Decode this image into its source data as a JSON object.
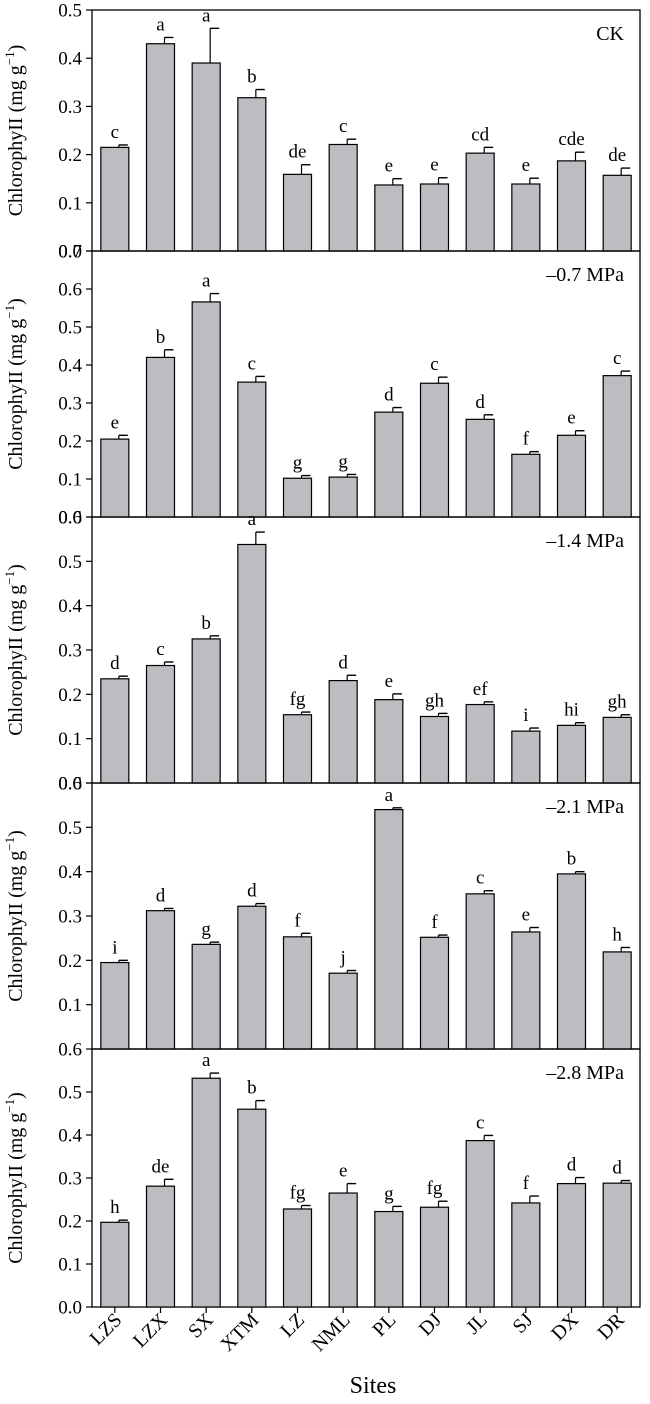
{
  "chart_data": {
    "type": "bar",
    "xlabel": "Sites",
    "categories": [
      "LZS",
      "LZX",
      "SX",
      "XTM",
      "LZ",
      "NML",
      "PL",
      "DJ",
      "JL",
      "SJ",
      "DX",
      "DR"
    ],
    "colors": {
      "bar": "#bfbcc1",
      "stroke": "#000000"
    },
    "panels": [
      {
        "label": "CK",
        "ylabel_main": "ChlorophyII (mg g",
        "ylabel_sup": "−1",
        "ylabel_end": ")",
        "ylim": [
          0,
          0.5
        ],
        "yticks": [
          "0.0",
          "0.1",
          "0.2",
          "0.3",
          "0.4",
          "0.5"
        ],
        "values": [
          0.215,
          0.43,
          0.39,
          0.318,
          0.159,
          0.221,
          0.137,
          0.139,
          0.203,
          0.139,
          0.187,
          0.157
        ],
        "errors": [
          0.005,
          0.013,
          0.072,
          0.017,
          0.02,
          0.011,
          0.013,
          0.013,
          0.012,
          0.012,
          0.018,
          0.015
        ],
        "letters": [
          "c",
          "a",
          "a",
          "b",
          "de",
          "c",
          "e",
          "e",
          "cd",
          "e",
          "cde",
          "de"
        ]
      },
      {
        "label": "–0.7 MPa",
        "ylabel_main": "ChlorophyII (mg g",
        "ylabel_sup": "−1",
        "ylabel_end": ")",
        "ylim": [
          0,
          0.7
        ],
        "yticks": [
          "0.0",
          "0.1",
          "0.2",
          "0.3",
          "0.4",
          "0.5",
          "0.6",
          "0.7"
        ],
        "values": [
          0.205,
          0.42,
          0.566,
          0.355,
          0.102,
          0.105,
          0.276,
          0.352,
          0.257,
          0.165,
          0.215,
          0.372
        ],
        "errors": [
          0.01,
          0.02,
          0.022,
          0.015,
          0.007,
          0.007,
          0.012,
          0.016,
          0.012,
          0.007,
          0.012,
          0.012
        ],
        "letters": [
          "e",
          "b",
          "a",
          "c",
          "g",
          "g",
          "d",
          "c",
          "d",
          "f",
          "e",
          "c"
        ]
      },
      {
        "label": "–1.4 MPa",
        "ylabel_main": "ChlorophyII (mg g",
        "ylabel_sup": "−1",
        "ylabel_end": ")",
        "ylim": [
          0,
          0.6
        ],
        "yticks": [
          "0.0",
          "0.1",
          "0.2",
          "0.3",
          "0.4",
          "0.5",
          "0.6"
        ],
        "values": [
          0.235,
          0.265,
          0.325,
          0.538,
          0.154,
          0.231,
          0.188,
          0.15,
          0.177,
          0.117,
          0.13,
          0.148
        ],
        "errors": [
          0.006,
          0.008,
          0.007,
          0.028,
          0.006,
          0.012,
          0.013,
          0.007,
          0.006,
          0.007,
          0.006,
          0.006
        ],
        "letters": [
          "d",
          "c",
          "b",
          "a",
          "fg",
          "d",
          "e",
          "gh",
          "ef",
          "i",
          "hi",
          "gh"
        ]
      },
      {
        "label": "–2.1 MPa",
        "ylabel_main": "ChlorophyII (mg g",
        "ylabel_sup": "−1",
        "ylabel_end": ")",
        "ylim": [
          0,
          0.6
        ],
        "yticks": [
          "0.1",
          "0.2",
          "0.3",
          "0.4",
          "0.5",
          "0.6"
        ],
        "values": [
          0.195,
          0.312,
          0.236,
          0.322,
          0.253,
          0.171,
          0.54,
          0.252,
          0.35,
          0.264,
          0.395,
          0.219
        ],
        "errors": [
          0.005,
          0.005,
          0.005,
          0.006,
          0.008,
          0.006,
          0.004,
          0.005,
          0.007,
          0.01,
          0.005,
          0.01
        ],
        "letters": [
          "i",
          "d",
          "g",
          "d",
          "f",
          "j",
          "a",
          "f",
          "c",
          "e",
          "b",
          "h"
        ]
      },
      {
        "label": "–2.8 MPa",
        "ylabel_main": "ChlorophyII (mg g",
        "ylabel_sup": "−1",
        "ylabel_end": ")",
        "ylim": [
          0,
          0.6
        ],
        "yticks": [
          "0.0",
          "0.1",
          "0.2",
          "0.3",
          "0.4",
          "0.5",
          "0.6"
        ],
        "values": [
          0.197,
          0.281,
          0.532,
          0.46,
          0.228,
          0.265,
          0.222,
          0.232,
          0.387,
          0.242,
          0.287,
          0.288
        ],
        "errors": [
          0.005,
          0.016,
          0.012,
          0.02,
          0.008,
          0.022,
          0.012,
          0.014,
          0.012,
          0.016,
          0.014,
          0.006
        ],
        "letters": [
          "h",
          "de",
          "a",
          "b",
          "fg",
          "e",
          "g",
          "fg",
          "c",
          "f",
          "d",
          "d"
        ]
      }
    ]
  }
}
